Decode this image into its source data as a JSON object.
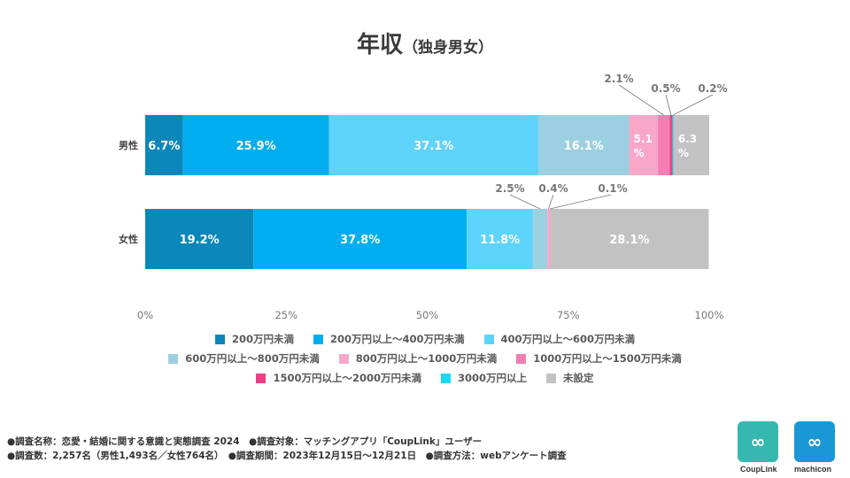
{
  "chart_data": {
    "type": "bar",
    "orientation": "horizontal",
    "stacked": true,
    "title": "年収",
    "subtitle": "（独身男女）",
    "categories": [
      "男性",
      "女性"
    ],
    "xlim": [
      0,
      100
    ],
    "x_ticks": [
      "0%",
      "25%",
      "50%",
      "75%",
      "100%"
    ],
    "series": [
      {
        "name": "200万円未満",
        "color": "#0b87b9",
        "values": [
          6.7,
          19.2
        ],
        "labels": [
          "6.7%",
          "19.2%"
        ]
      },
      {
        "name": "200万円以上～400万円未満",
        "color": "#00aeef",
        "values": [
          25.9,
          37.8
        ],
        "labels": [
          "25.9%",
          "37.8%"
        ]
      },
      {
        "name": "400万円以上～600万円未満",
        "color": "#5ed3fb",
        "values": [
          37.1,
          11.8
        ],
        "labels": [
          "37.1%",
          "11.8%"
        ]
      },
      {
        "name": "600万円以上～800万円未満",
        "color": "#9bd0e1",
        "values": [
          16.1,
          2.5
        ],
        "labels": [
          "16.1%",
          "2.5%"
        ]
      },
      {
        "name": "800万円以上～1000万円未満",
        "color": "#f8a7c9",
        "values": [
          5.1,
          0.4
        ],
        "labels": [
          "5.1\n%",
          "0.4%"
        ]
      },
      {
        "name": "1000万円以上～1500万円未満",
        "color": "#f47eb3",
        "values": [
          2.1,
          0.1
        ],
        "labels": [
          "2.1%",
          "0.1%"
        ]
      },
      {
        "name": "1500万円以上～2000万円未満",
        "color": "#ee3f88",
        "values": [
          0.5,
          0
        ],
        "labels": [
          "0.5%",
          ""
        ]
      },
      {
        "name": "3000万円以上",
        "color": "#18d9f5",
        "values": [
          0.2,
          0
        ],
        "labels": [
          "0.2%",
          ""
        ]
      },
      {
        "name": "未設定",
        "color": "#c2c2c2",
        "values": [
          6.3,
          28.1
        ],
        "labels": [
          "6.3\n%",
          "28.1%"
        ]
      }
    ]
  },
  "footnotes": [
    "●調査名称：恋愛・結婚に関する意識と実態調査 2024　●調査対象：マッチングアプリ「CoupLink」ユーザー",
    "●調査数：2,257名（男性1,493名／女性764名）　●調査期間：2023年12月15日～12月21日　●調査方法：webアンケート調査"
  ],
  "logos": {
    "couplink": "CoupLink",
    "machicon": "machicon"
  }
}
